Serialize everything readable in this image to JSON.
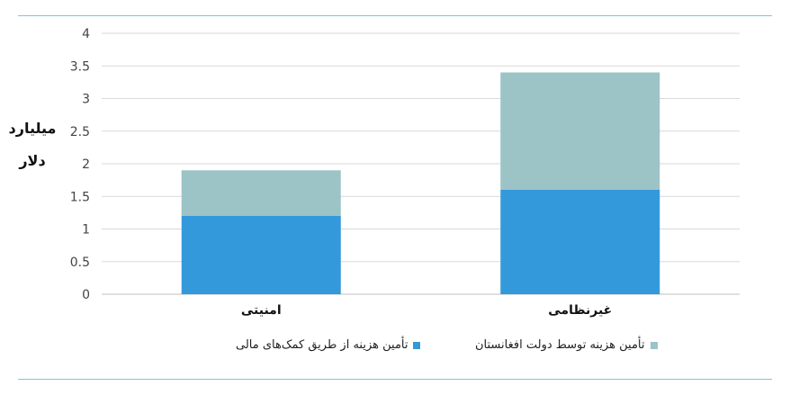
{
  "colors": {
    "rule": "#7ec3e8",
    "grid": "#d9d9d9",
    "axis": "#bfbfbf",
    "series_top": "#9cc3c6",
    "series_bottom": "#3499db"
  },
  "chart_data": {
    "type": "bar",
    "stacked": true,
    "categories": [
      "امنیتی",
      "غیرنظامی"
    ],
    "series": [
      {
        "name": "تأمین هزینه از طریق کمک‌های مالی",
        "values": [
          1.2,
          1.6
        ],
        "color": "#3499db"
      },
      {
        "name": "تأمین هزینه توسط دولت افغانستان",
        "values": [
          0.7,
          1.8
        ],
        "color": "#9cc3c6"
      }
    ],
    "ylabel_line1": "میلیارد",
    "ylabel_line2": "دلار",
    "ylim": [
      0,
      4
    ],
    "yticks": [
      "0",
      "0.5",
      "1",
      "1.5",
      "2",
      "2.5",
      "3",
      "3.5",
      "4"
    ],
    "grid": true,
    "legend_position": "bottom"
  }
}
